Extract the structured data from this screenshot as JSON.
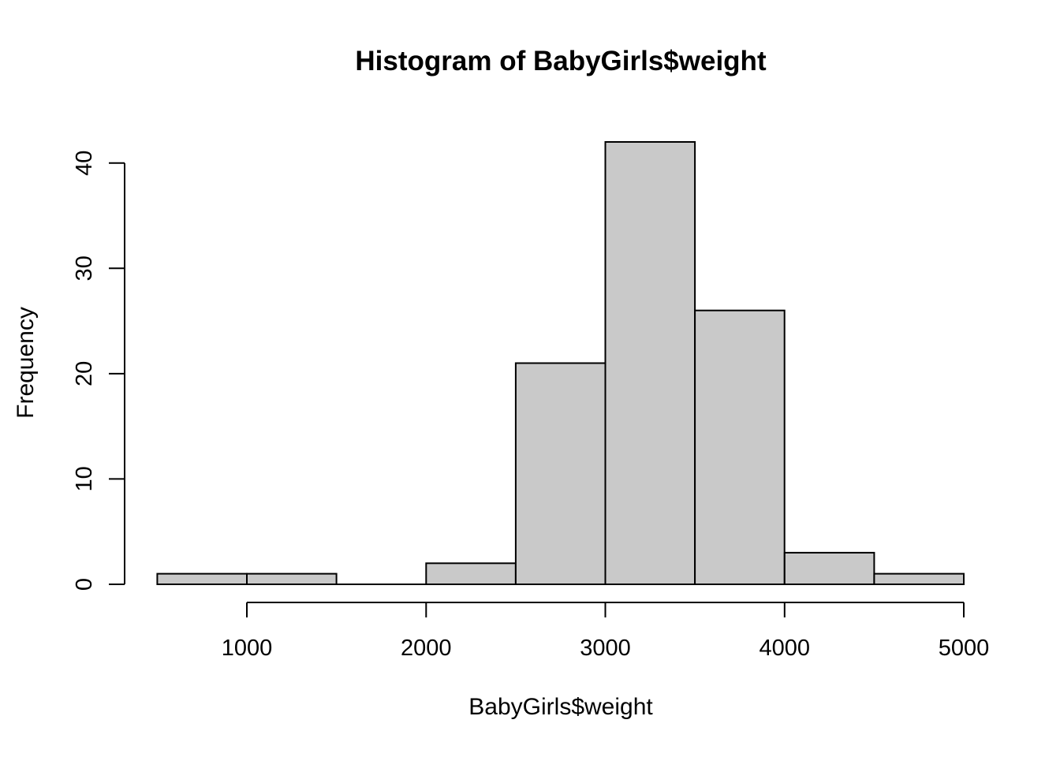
{
  "chart_data": {
    "type": "bar",
    "subtype": "histogram",
    "title": "Histogram of BabyGirls$weight",
    "xlabel": "BabyGirls$weight",
    "ylabel": "Frequency",
    "bin_edges": [
      500,
      1000,
      1500,
      2000,
      2500,
      3000,
      3500,
      4000,
      4500,
      5000
    ],
    "frequencies": [
      1,
      1,
      0,
      2,
      21,
      42,
      26,
      3,
      1
    ],
    "x_ticks": [
      1000,
      2000,
      3000,
      4000,
      5000
    ],
    "y_ticks": [
      0,
      10,
      20,
      30,
      40
    ],
    "xlim": [
      500,
      5000
    ],
    "ylim": [
      0,
      42
    ],
    "legend": null,
    "grid": false,
    "bar_fill": "#c9c9c9",
    "bar_stroke": "#000000",
    "axis_color": "#000000",
    "background": "#ffffff"
  }
}
